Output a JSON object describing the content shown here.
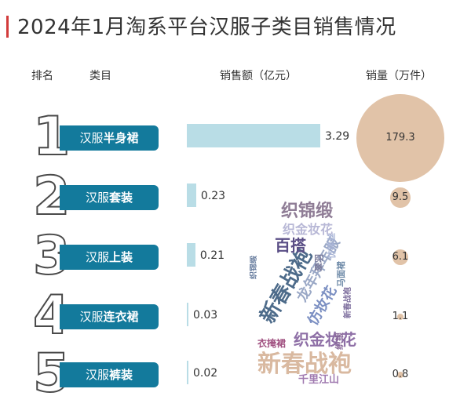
{
  "title": "2024年1月淘系平台汉服子类目销售情况",
  "headers": {
    "rank": "排名",
    "category": "类目",
    "sales_amount": "销售额（亿元）",
    "sales_volume": "销量（万件）"
  },
  "colors": {
    "accent": "#d23b3b",
    "pill": "#137a9c",
    "bar": "#b9dde6",
    "circle": "#e1c3a8"
  },
  "chart_data": {
    "type": "bar",
    "categories": [
      "汉服半身裙",
      "汉服套装",
      "汉服上装",
      "汉服连衣裙",
      "汉服裤装"
    ],
    "rows": [
      {
        "rank": "1",
        "prefix": "汉服",
        "name": "半身裙",
        "amount": 3.29,
        "amount_label": "3.29",
        "volume": 179.3,
        "volume_label": "179.3"
      },
      {
        "rank": "2",
        "prefix": "汉服",
        "name": "套装",
        "amount": 0.23,
        "amount_label": "0.23",
        "volume": 9.5,
        "volume_label": "9.5"
      },
      {
        "rank": "3",
        "prefix": "汉服",
        "name": "上装",
        "amount": 0.21,
        "amount_label": "0.21",
        "volume": 6.1,
        "volume_label": "6.1"
      },
      {
        "rank": "4",
        "prefix": "汉服",
        "name": "连衣裙",
        "amount": 0.03,
        "amount_label": "0.03",
        "volume": 1.1,
        "volume_label": "1.1"
      },
      {
        "rank": "5",
        "prefix": "汉服",
        "name": "裤装",
        "amount": 0.02,
        "amount_label": "0.02",
        "volume": 0.8,
        "volume_label": "0.8"
      }
    ],
    "series": [
      {
        "name": "销售额（亿元）",
        "values": [
          3.29,
          0.23,
          0.21,
          0.03,
          0.02
        ]
      },
      {
        "name": "销量（万件）",
        "values": [
          179.3,
          9.5,
          6.1,
          1.1,
          0.8
        ]
      }
    ]
  },
  "word_cloud": [
    {
      "text": "新春战袍",
      "color": "#d9b9a0"
    },
    {
      "text": "新春战袍",
      "color": "#4d6b8a"
    },
    {
      "text": "龙年拜年服",
      "color": "#9aa8c6"
    },
    {
      "text": "织锦缎",
      "color": "#8f7d96"
    },
    {
      "text": "织金妆花",
      "color": "#b8b8d6"
    },
    {
      "text": "织金妆花",
      "color": "#8e6fa6"
    },
    {
      "text": "仿妆花",
      "color": "#7b8fc2"
    },
    {
      "text": "百搭",
      "color": "#5a4e86"
    },
    {
      "text": "千里江山",
      "color": "#a07ab0"
    },
    {
      "text": "衣掩裙",
      "color": "#a05080"
    },
    {
      "text": "翠羽",
      "color": "#7a7a9a"
    },
    {
      "text": "仿缂丝",
      "color": "#a8b4d6"
    },
    {
      "text": "马面裙",
      "color": "#6e8aa8"
    },
    {
      "text": "织银",
      "color": "#8a6a9a"
    },
    {
      "text": "新春战袍",
      "color": "#7e6f9e"
    },
    {
      "text": "织锦缎",
      "color": "#6a7fa0"
    }
  ]
}
